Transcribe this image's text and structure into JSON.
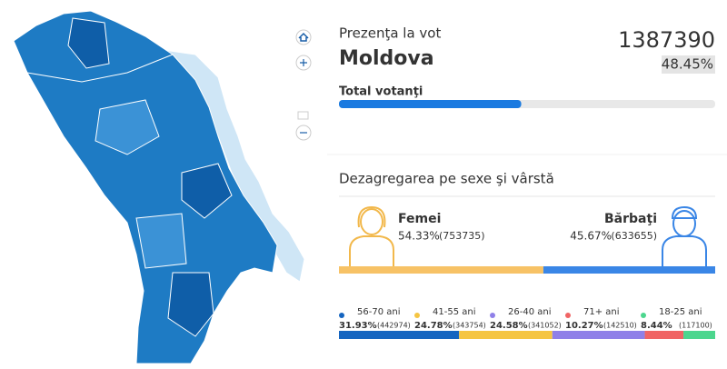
{
  "header": {
    "title": "Prezenţa la vot",
    "region": "Moldova",
    "total": "1387390",
    "percent": "48.45%"
  },
  "total_voters": {
    "label": "Total votanţi"
  },
  "breakdown": {
    "title": "Dezagregarea pe sexe şi vârstă",
    "female": {
      "label": "Femei",
      "percent": "54.33%",
      "count": "(753735)",
      "color": "#f7c266"
    },
    "male": {
      "label": "Bărbaţi",
      "percent": "45.67%",
      "count": "(633655)",
      "color": "#3a86e6"
    },
    "age_groups": [
      {
        "label": "56-70 ani",
        "percent": "31.93%",
        "count": "(442974)",
        "color": "#1565c0"
      },
      {
        "label": "41-55 ani",
        "percent": "24.78%",
        "count": "(343754)",
        "color": "#f5c542"
      },
      {
        "label": "26-40 ani",
        "percent": "24.58%",
        "count": "(341052)",
        "color": "#8f80e8"
      },
      {
        "label": "71+ ani",
        "percent": "10.27%",
        "count": "(142510)",
        "color": "#f06464"
      },
      {
        "label": "18-25 ani",
        "percent": "8.44%",
        "count": "(117100)",
        "color": "#4cd68e"
      }
    ]
  }
}
